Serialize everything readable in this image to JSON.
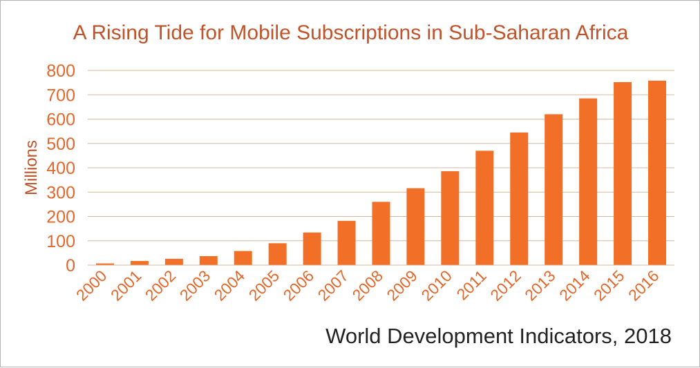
{
  "colors": {
    "bar": "#f26f27",
    "tick_text": "#e3672a",
    "title_text": "#c0532a",
    "grid": "#d9b79e"
  },
  "source_note": "World Development Indicators, 2018",
  "chart_data": {
    "type": "bar",
    "title": "A Rising Tide for Mobile Subscriptions in Sub-Saharan Africa",
    "xlabel": "",
    "ylabel": "Millions",
    "ylim": [
      0,
      800
    ],
    "yticks": [
      0,
      100,
      200,
      300,
      400,
      500,
      600,
      700,
      800
    ],
    "grid": true,
    "categories": [
      "2000",
      "2001",
      "2002",
      "2003",
      "2004",
      "2005",
      "2006",
      "2007",
      "2008",
      "2009",
      "2010",
      "2011",
      "2012",
      "2013",
      "2014",
      "2015",
      "2016"
    ],
    "values": [
      7,
      17,
      26,
      37,
      58,
      90,
      134,
      182,
      260,
      316,
      386,
      470,
      545,
      620,
      685,
      752,
      758
    ]
  }
}
